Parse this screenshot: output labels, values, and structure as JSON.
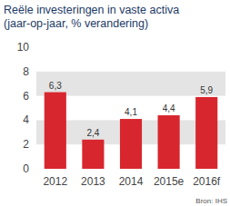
{
  "chart_data": {
    "type": "bar",
    "title": "Reële investeringen in vaste activa  (jaar-op-jaar, % verandering)",
    "categories": [
      "2012",
      "2013",
      "2014",
      "2015e",
      "2016f"
    ],
    "values": [
      6.3,
      2.4,
      4.1,
      4.4,
      5.9
    ],
    "value_labels": [
      "6,3",
      "2,4",
      "4,1",
      "4,4",
      "5,9"
    ],
    "color": "#d8262e",
    "ylim": [
      0,
      10
    ],
    "yticks": [
      0,
      2,
      4,
      6,
      8,
      10
    ],
    "grid": true,
    "data_labels": true,
    "source": "Bron: IHS"
  }
}
